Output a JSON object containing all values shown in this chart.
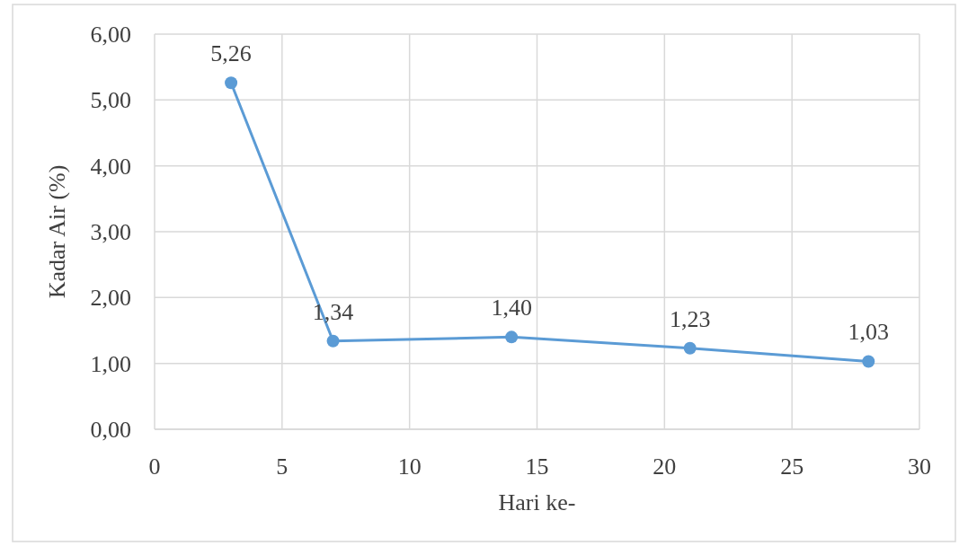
{
  "chart_data": {
    "type": "line",
    "xlabel": "Hari ke-",
    "ylabel": "Kadar Air (%)",
    "x": [
      3,
      7,
      14,
      21,
      28
    ],
    "series": [
      {
        "color": "#5b9bd5",
        "values": [
          5.26,
          1.34,
          1.4,
          1.23,
          1.03
        ],
        "value_labels": [
          "5,26",
          "1,34",
          "1,40",
          "1,23",
          "1,03"
        ]
      }
    ],
    "xlim": [
      0,
      30
    ],
    "xticks": [
      0,
      5,
      10,
      15,
      20,
      25,
      30
    ],
    "ylim": [
      0,
      6
    ],
    "yticks": [
      {
        "value": 0,
        "label": "0,00"
      },
      {
        "value": 1,
        "label": "1,00"
      },
      {
        "value": 2,
        "label": "2,00"
      },
      {
        "value": 3,
        "label": "3,00"
      },
      {
        "value": 4,
        "label": "4,00"
      },
      {
        "value": 5,
        "label": "5,00"
      },
      {
        "value": 6,
        "label": "6,00"
      }
    ],
    "grid": true,
    "marker": "circle",
    "line_style": "solid"
  }
}
